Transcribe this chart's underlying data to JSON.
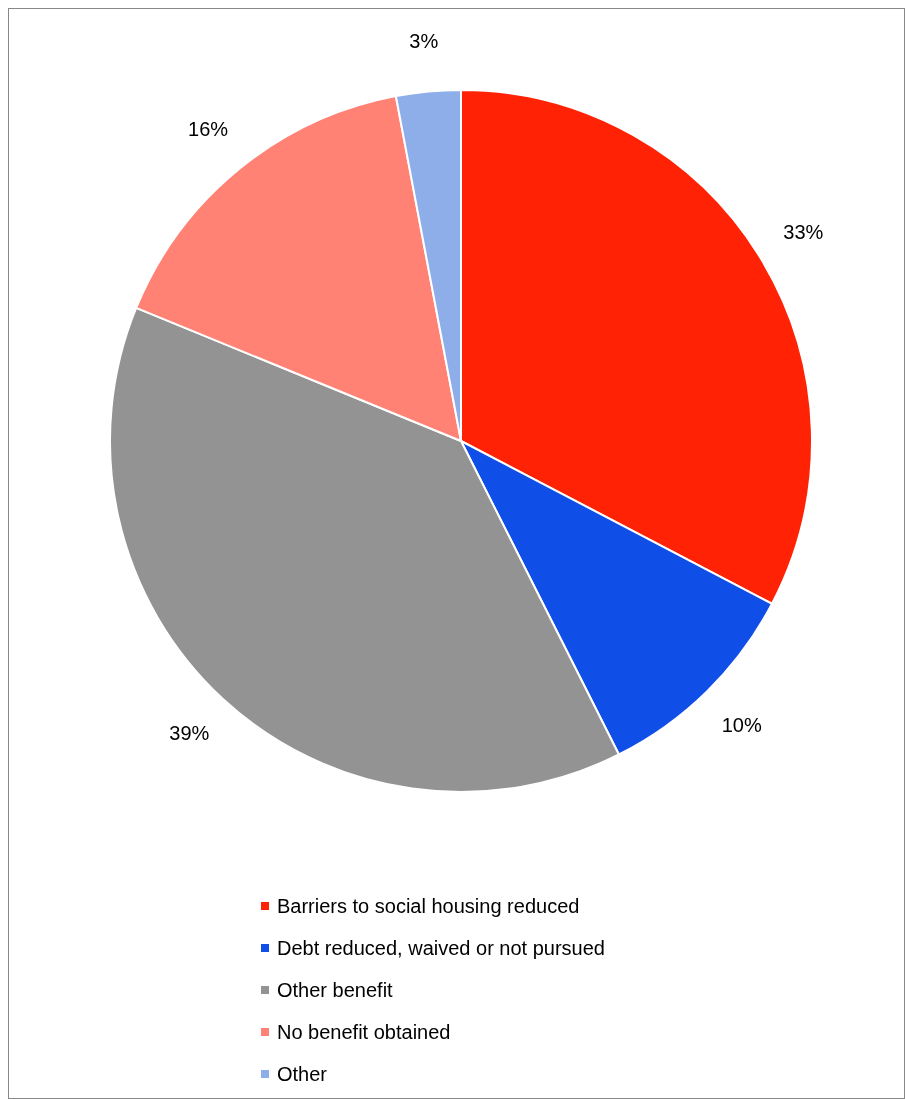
{
  "chart_data": {
    "type": "pie",
    "categories": [
      "Barriers to social housing reduced",
      "Debt reduced, waived or not pursued",
      "Other benefit",
      "No benefit obtained",
      "Other"
    ],
    "values": [
      33,
      10,
      39,
      16,
      3
    ],
    "colors": [
      "#ff2205",
      "#104ee8",
      "#939393",
      "#ff8275",
      "#8eaeea"
    ],
    "value_labels": [
      "33%",
      "10%",
      "39%",
      "16%",
      "3%"
    ],
    "legend": "bottom"
  }
}
